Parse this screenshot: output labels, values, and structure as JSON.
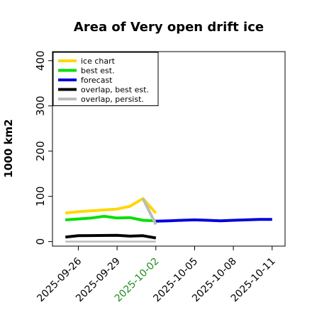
{
  "chart_data": {
    "type": "line",
    "title": "Area of Very open drift ice",
    "ylabel": "1000 km2",
    "xlabel": "",
    "ylim": [
      -10,
      420
    ],
    "xlim": [
      "2025-09-24",
      "2025-10-12"
    ],
    "yticks": [
      0,
      100,
      200,
      300,
      400
    ],
    "xticks": [
      "2025-09-26",
      "2025-09-29",
      "2025-10-02",
      "2025-10-05",
      "2025-10-08",
      "2025-10-11"
    ],
    "highlight_tick": "2025-10-02",
    "highlight_color": "#228B22",
    "grid": false,
    "legend_position": "top-left",
    "series": [
      {
        "name": "ice chart",
        "color": "#FFD700",
        "points": [
          [
            "2025-09-25",
            63
          ],
          [
            "2025-09-26",
            66
          ],
          [
            "2025-09-29",
            72
          ],
          [
            "2025-09-30",
            78
          ],
          [
            "2025-10-01",
            95
          ],
          [
            "2025-10-02",
            63
          ]
        ]
      },
      {
        "name": "best est.",
        "color": "#00E000",
        "points": [
          [
            "2025-09-25",
            48
          ],
          [
            "2025-09-26",
            50
          ],
          [
            "2025-09-27",
            52
          ],
          [
            "2025-09-28",
            56
          ],
          [
            "2025-09-29",
            52
          ],
          [
            "2025-09-30",
            53
          ],
          [
            "2025-10-01",
            47
          ],
          [
            "2025-10-02",
            46
          ]
        ]
      },
      {
        "name": "forecast",
        "color": "#0000DD",
        "points": [
          [
            "2025-10-02",
            45
          ],
          [
            "2025-10-03",
            46
          ],
          [
            "2025-10-04",
            47
          ],
          [
            "2025-10-05",
            48
          ],
          [
            "2025-10-06",
            47
          ],
          [
            "2025-10-07",
            46
          ],
          [
            "2025-10-08",
            47
          ],
          [
            "2025-10-09",
            48
          ],
          [
            "2025-10-10",
            49
          ],
          [
            "2025-10-11",
            49
          ]
        ]
      },
      {
        "name": "overlap, best est.",
        "color": "#000000",
        "points": [
          [
            "2025-09-25",
            10
          ],
          [
            "2025-09-26",
            13
          ],
          [
            "2025-09-29",
            14
          ],
          [
            "2025-09-30",
            12
          ],
          [
            "2025-10-01",
            13
          ],
          [
            "2025-10-02",
            8
          ]
        ]
      },
      {
        "name": "overlap, persist.",
        "color": "#BBBBBB",
        "points": [
          [
            "2025-10-01",
            95
          ],
          [
            "2025-10-02",
            38
          ]
        ],
        "baseline_points": [
          [
            "2025-09-25",
            0
          ],
          [
            "2025-09-26",
            0
          ],
          [
            "2025-09-29",
            0
          ],
          [
            "2025-09-30",
            0
          ],
          [
            "2025-10-01",
            0
          ],
          [
            "2025-10-02",
            0
          ]
        ]
      }
    ]
  }
}
